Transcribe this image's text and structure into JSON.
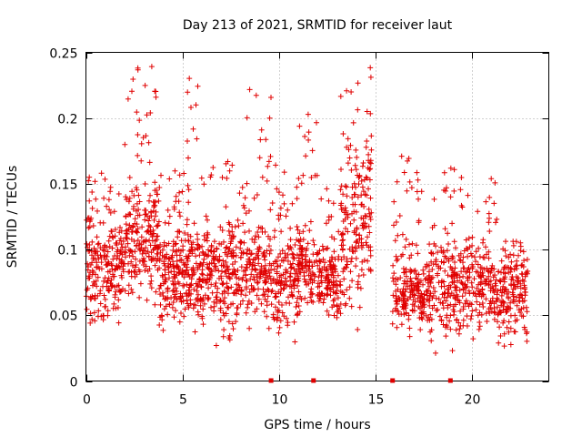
{
  "chart_data": {
    "type": "scatter",
    "title": "Day 213 of 2021, SRMTID for receiver laut",
    "xlabel": "GPS time / hours",
    "ylabel": "SRMTID / TECUs",
    "xlim": [
      0,
      24
    ],
    "ylim": [
      0,
      0.25
    ],
    "xticks": [
      0,
      5,
      10,
      15,
      20
    ],
    "xtick_labels": [
      "0",
      "5",
      "10",
      "15",
      "20"
    ],
    "yticks": [
      0,
      0.05,
      0.1,
      0.15,
      0.2,
      0.25
    ],
    "ytick_labels": [
      "0",
      "0.05",
      "0.1",
      "0.15",
      "0.2",
      "0.25"
    ],
    "grid": true,
    "marker": "+",
    "color": "#e00000",
    "gap_markers_x": [
      9.6,
      11.8,
      15.9,
      18.9
    ],
    "series_description": "dense scatter of per-satellite SRMTID values; data gap ~14.8-15.9 h",
    "segments": [
      {
        "x_start": 0.0,
        "x_end": 2.0,
        "y_min": 0.04,
        "y_center": 0.085,
        "y_max": 0.16,
        "n": 220
      },
      {
        "x_start": 2.0,
        "x_end": 3.8,
        "y_min": 0.05,
        "y_center": 0.11,
        "y_max": 0.24,
        "n": 220
      },
      {
        "x_start": 3.8,
        "x_end": 5.2,
        "y_min": 0.03,
        "y_center": 0.08,
        "y_max": 0.16,
        "n": 170
      },
      {
        "x_start": 5.2,
        "x_end": 6.0,
        "y_min": 0.03,
        "y_center": 0.08,
        "y_max": 0.237,
        "n": 110
      },
      {
        "x_start": 6.0,
        "x_end": 8.0,
        "y_min": 0.025,
        "y_center": 0.08,
        "y_max": 0.17,
        "n": 230
      },
      {
        "x_start": 8.0,
        "x_end": 9.6,
        "y_min": 0.04,
        "y_center": 0.085,
        "y_max": 0.225,
        "n": 180
      },
      {
        "x_start": 9.6,
        "x_end": 11.0,
        "y_min": 0.025,
        "y_center": 0.075,
        "y_max": 0.17,
        "n": 150
      },
      {
        "x_start": 11.0,
        "x_end": 12.0,
        "y_min": 0.05,
        "y_center": 0.085,
        "y_max": 0.21,
        "n": 110
      },
      {
        "x_start": 12.0,
        "x_end": 13.2,
        "y_min": 0.04,
        "y_center": 0.075,
        "y_max": 0.15,
        "n": 130
      },
      {
        "x_start": 13.2,
        "x_end": 14.8,
        "y_min": 0.025,
        "y_center": 0.11,
        "y_max": 0.243,
        "n": 190
      },
      {
        "x_start": 15.9,
        "x_end": 17.6,
        "y_min": 0.03,
        "y_center": 0.065,
        "y_max": 0.178,
        "n": 190
      },
      {
        "x_start": 17.6,
        "x_end": 19.2,
        "y_min": 0.02,
        "y_center": 0.07,
        "y_max": 0.168,
        "n": 170
      },
      {
        "x_start": 19.2,
        "x_end": 21.3,
        "y_min": 0.03,
        "y_center": 0.07,
        "y_max": 0.155,
        "n": 210
      },
      {
        "x_start": 21.3,
        "x_end": 22.9,
        "y_min": 0.015,
        "y_center": 0.065,
        "y_max": 0.11,
        "n": 170
      }
    ]
  }
}
